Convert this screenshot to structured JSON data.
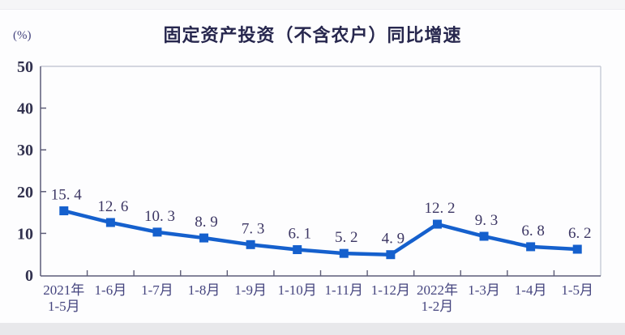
{
  "page": {
    "title": "固定资产投资（不含农户）同比增速",
    "y_axis_unit": "(%)"
  },
  "chart_data": {
    "type": "line",
    "title": "固定资产投资（不含农户）同比增速",
    "ylabel": "(%)",
    "xlabel": "",
    "categories": [
      [
        "2021年",
        "1-5月"
      ],
      [
        "1-6月"
      ],
      [
        "1-7月"
      ],
      [
        "1-8月"
      ],
      [
        "1-9月"
      ],
      [
        "1-10月"
      ],
      [
        "1-11月"
      ],
      [
        "1-12月"
      ],
      [
        "2022年",
        "1-2月"
      ],
      [
        "1-3月"
      ],
      [
        "1-4月"
      ],
      [
        "1-5月"
      ]
    ],
    "values": [
      15.4,
      12.6,
      10.3,
      8.9,
      7.3,
      6.1,
      5.2,
      4.9,
      12.2,
      9.3,
      6.8,
      6.2
    ],
    "ylim": [
      0,
      50
    ],
    "y_ticks": [
      0,
      10,
      20,
      30,
      40,
      50
    ],
    "grid": false,
    "legend": "none",
    "data_labels": true,
    "marker": "square",
    "line_color": "#1560cd",
    "marker_color": "#1560cd",
    "axis_color": "#5d5d78",
    "border_color": "#c6cad6"
  }
}
